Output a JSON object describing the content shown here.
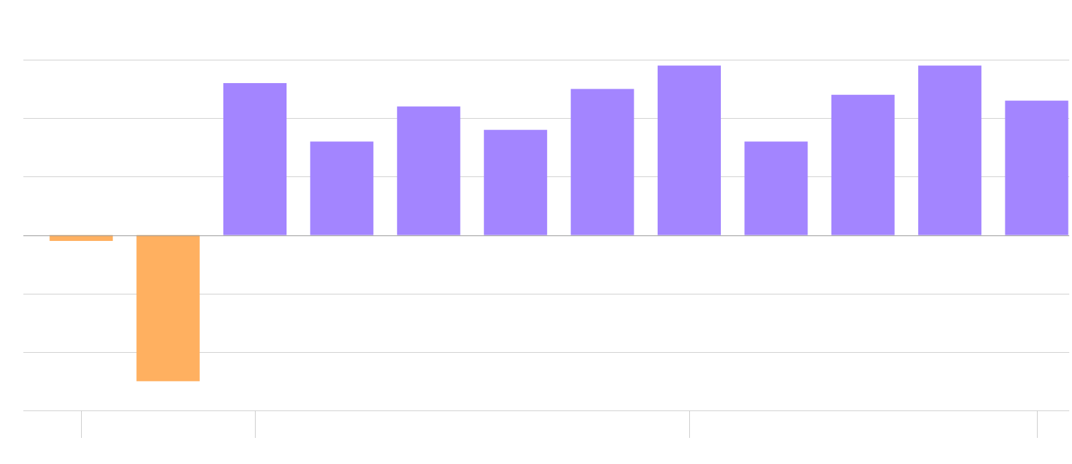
{
  "chart_data": {
    "type": "bar",
    "categories": [
      null,
      null,
      null,
      null,
      null,
      null,
      null,
      null,
      null,
      null,
      null,
      null
    ],
    "values": [
      -0.1,
      -2.5,
      2.6,
      1.6,
      2.2,
      1.8,
      2.5,
      2.9,
      1.6,
      2.4,
      2.9,
      2.3
    ],
    "positive_color": "#a385ff",
    "negative_color": "#ffb060",
    "ylim": [
      -3,
      3
    ],
    "yticks": [
      -3,
      -2,
      -1,
      0,
      1,
      2,
      3
    ],
    "grid": true,
    "xticks": [
      0,
      2,
      7,
      11
    ]
  }
}
